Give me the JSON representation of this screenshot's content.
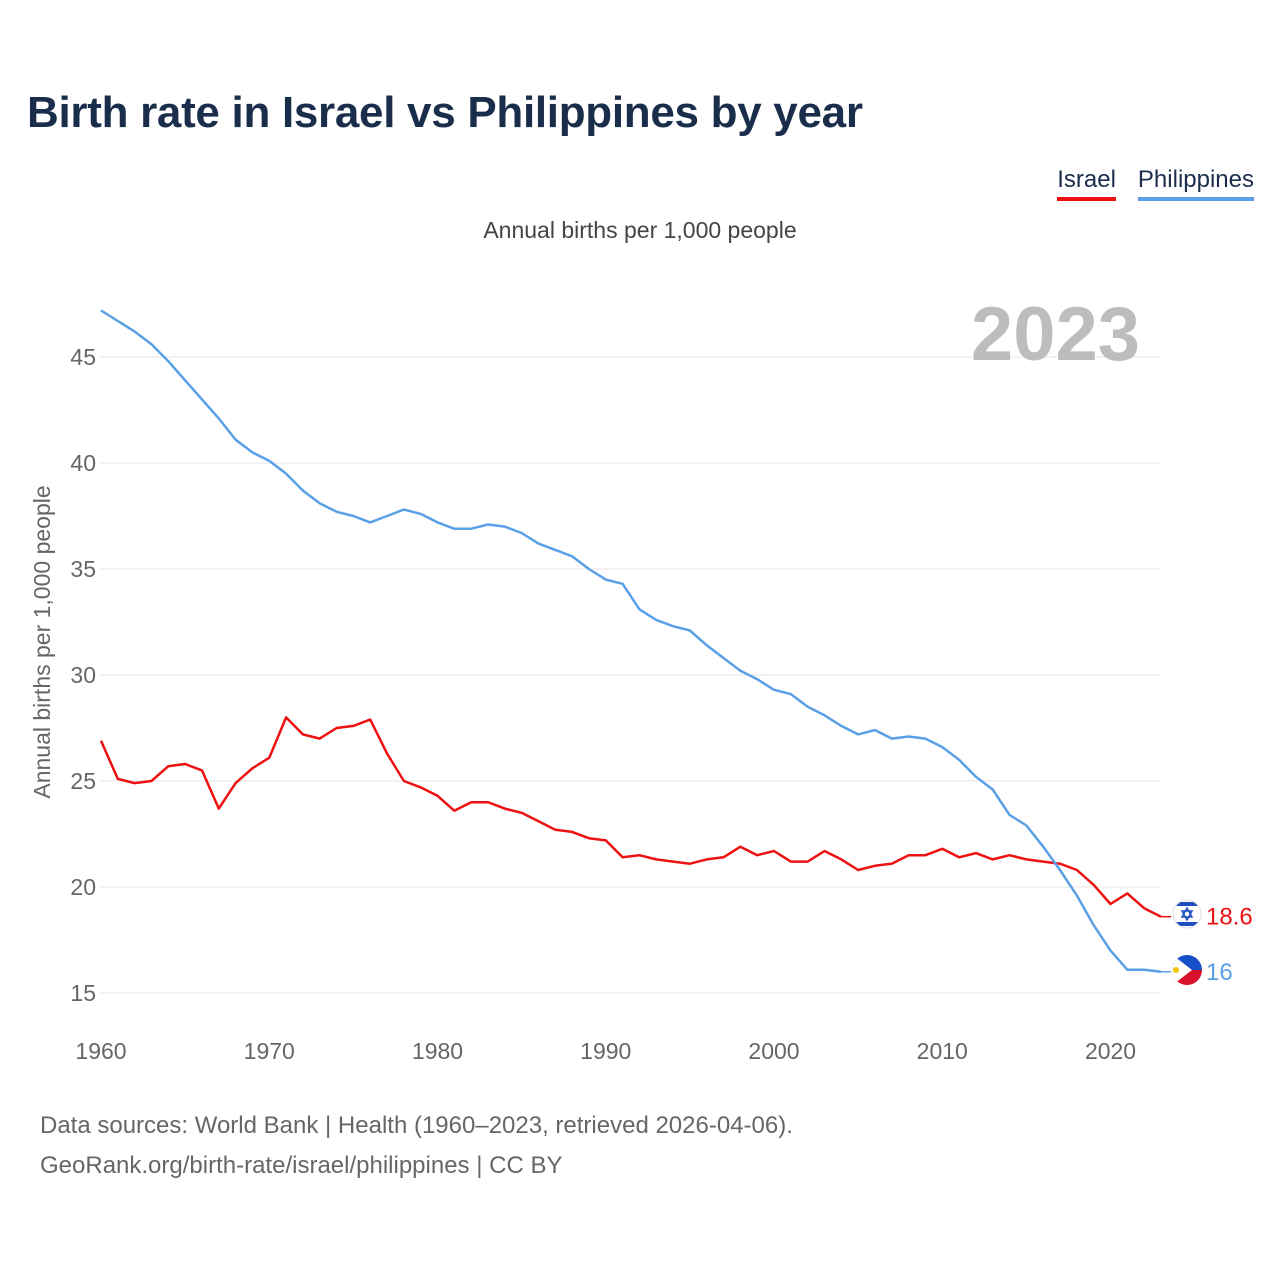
{
  "title": "Birth rate in Israel vs Philippines by year",
  "subtitle": "Annual births per 1,000 people",
  "year_label": "2023",
  "legend": [
    {
      "name": "Israel",
      "color": "#ee1111"
    },
    {
      "name": "Philippines",
      "color": "#5aa0e6"
    }
  ],
  "chart_data": {
    "type": "line",
    "title": "Birth rate in Israel vs Philippines by year",
    "ylabel": "Annual births per 1,000 people",
    "xlabel": "",
    "xlim": [
      1960,
      2023
    ],
    "ylim": [
      15,
      47.5
    ],
    "x_ticks": [
      "1960",
      "1970",
      "1980",
      "1990",
      "2000",
      "2010",
      "2020"
    ],
    "y_ticks": [
      "15",
      "20",
      "25",
      "30",
      "35",
      "40",
      "45"
    ],
    "x": [
      1960,
      1961,
      1962,
      1963,
      1964,
      1965,
      1966,
      1967,
      1968,
      1969,
      1970,
      1971,
      1972,
      1973,
      1974,
      1975,
      1976,
      1977,
      1978,
      1979,
      1980,
      1981,
      1982,
      1983,
      1984,
      1985,
      1986,
      1987,
      1988,
      1989,
      1990,
      1991,
      1992,
      1993,
      1994,
      1995,
      1996,
      1997,
      1998,
      1999,
      2000,
      2001,
      2002,
      2003,
      2004,
      2005,
      2006,
      2007,
      2008,
      2009,
      2010,
      2011,
      2012,
      2013,
      2014,
      2015,
      2016,
      2017,
      2018,
      2019,
      2020,
      2021,
      2022,
      2023
    ],
    "series": [
      {
        "name": "Israel",
        "color": "#ee1111",
        "end_label": "18.6",
        "values": [
          26.9,
          25.1,
          24.9,
          25.0,
          25.7,
          25.8,
          25.5,
          23.7,
          24.9,
          25.6,
          26.1,
          28.0,
          27.2,
          27.0,
          27.5,
          27.6,
          27.9,
          26.3,
          25.0,
          24.7,
          24.3,
          23.6,
          24.0,
          24.0,
          23.7,
          23.5,
          23.1,
          22.7,
          22.6,
          22.3,
          22.2,
          21.4,
          21.5,
          21.3,
          21.2,
          21.1,
          21.3,
          21.4,
          21.9,
          21.5,
          21.7,
          21.2,
          21.2,
          21.7,
          21.3,
          20.8,
          21.0,
          21.1,
          21.5,
          21.5,
          21.8,
          21.4,
          21.6,
          21.3,
          21.5,
          21.3,
          21.2,
          21.1,
          20.8,
          20.1,
          19.2,
          19.7,
          19.0,
          18.6
        ]
      },
      {
        "name": "Philippines",
        "color": "#5aa0e6",
        "end_label": "16",
        "values": [
          47.2,
          46.7,
          46.2,
          45.6,
          44.8,
          43.9,
          43.0,
          42.1,
          41.1,
          40.5,
          40.1,
          39.5,
          38.7,
          38.1,
          37.7,
          37.5,
          37.2,
          37.5,
          37.8,
          37.6,
          37.2,
          36.9,
          36.9,
          37.1,
          37.0,
          36.7,
          36.2,
          35.9,
          35.6,
          35.0,
          34.5,
          34.3,
          33.1,
          32.6,
          32.3,
          32.1,
          31.4,
          30.8,
          30.2,
          29.8,
          29.3,
          29.1,
          28.5,
          28.1,
          27.6,
          27.2,
          27.4,
          27.0,
          27.1,
          27.0,
          26.6,
          26.0,
          25.2,
          24.6,
          23.4,
          22.9,
          21.9,
          20.8,
          19.6,
          18.2,
          17.0,
          16.1,
          16.1,
          16.0
        ]
      }
    ]
  },
  "footer": {
    "sources": "Data sources: World Bank | Health (1960–2023, retrieved 2026-04-06).",
    "credit": "GeoRank.org/birth-rate/israel/philippines | CC BY"
  }
}
